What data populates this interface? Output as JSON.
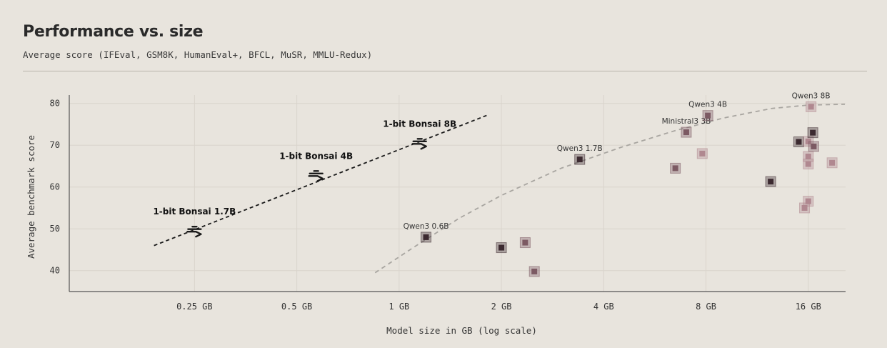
{
  "title": "Performance vs. size",
  "subtitle": "Average score (IFEval, GSM8K, HumanEval+, BFCL, MuSR, MMLU-Redux)",
  "chart_data": {
    "type": "scatter",
    "title": "Performance vs. size",
    "xlabel": "Model size in GB (log scale)",
    "ylabel": "Average benchmark score",
    "xscale": "log2",
    "xlim": [
      0.107,
      20.6
    ],
    "ylim": [
      35,
      82
    ],
    "xticks": [
      0.25,
      0.5,
      1,
      2,
      4,
      8,
      16
    ],
    "xtick_labels": [
      "0.25 GB",
      "0.5 GB",
      "1 GB",
      "2 GB",
      "4 GB",
      "8 GB",
      "16 GB"
    ],
    "yticks": [
      40,
      50,
      60,
      70,
      80
    ],
    "ytick_labels": [
      "40",
      "50",
      "60",
      "70",
      "80"
    ],
    "grid": true,
    "colors": {
      "background": "#e8e4dd",
      "grid": "#d9d4cc",
      "axis": "#555555",
      "bonsai_trend": "#1a1a1a",
      "baseline_trend": "#a8a5a0",
      "dark_marker": "#3c2a30",
      "mid_marker": "#7c5a63",
      "light_marker": "#b08890"
    },
    "bonsai": {
      "icon": "bonsai-chevron-icon",
      "points": [
        {
          "label": "1-bit Bonsai 1.7B",
          "x": 0.25,
          "y": 49.5
        },
        {
          "label": "1-bit Bonsai 4B",
          "x": 0.57,
          "y": 62.8
        },
        {
          "label": "1-bit Bonsai 8B",
          "x": 1.15,
          "y": 70.5
        }
      ],
      "trend": [
        {
          "x": 0.19,
          "y": 46.0
        },
        {
          "x": 1.82,
          "y": 77.2
        }
      ]
    },
    "baseline_trend": [
      {
        "x": 0.85,
        "y": 39.5
      },
      {
        "x": 1.1,
        "y": 45.5
      },
      {
        "x": 1.5,
        "y": 52.5
      },
      {
        "x": 2.0,
        "y": 58.0
      },
      {
        "x": 3.0,
        "y": 64.5
      },
      {
        "x": 4.5,
        "y": 69.5
      },
      {
        "x": 6.5,
        "y": 73.5
      },
      {
        "x": 9.0,
        "y": 76.5
      },
      {
        "x": 12.5,
        "y": 78.8
      },
      {
        "x": 16.0,
        "y": 79.6
      },
      {
        "x": 20.5,
        "y": 79.8
      }
    ],
    "points": [
      {
        "label": "Qwen3 0.6B",
        "x": 1.2,
        "y": 48.0,
        "shade": "dark"
      },
      {
        "label": "",
        "x": 2.0,
        "y": 45.5,
        "shade": "dark"
      },
      {
        "label": "",
        "x": 2.35,
        "y": 46.7,
        "shade": "mid"
      },
      {
        "label": "",
        "x": 2.5,
        "y": 39.8,
        "shade": "mid"
      },
      {
        "label": "Qwen3 1.7B",
        "x": 3.4,
        "y": 66.6,
        "shade": "dark"
      },
      {
        "label": "",
        "x": 6.5,
        "y": 64.5,
        "shade": "mid"
      },
      {
        "label": "Ministral3 3B",
        "x": 7.0,
        "y": 73.1,
        "shade": "mid"
      },
      {
        "label": "",
        "x": 7.8,
        "y": 68.0,
        "shade": "light"
      },
      {
        "label": "Qwen3 4B",
        "x": 8.1,
        "y": 77.1,
        "shade": "mid"
      },
      {
        "label": "",
        "x": 12.4,
        "y": 61.3,
        "shade": "dark"
      },
      {
        "label": "",
        "x": 15.0,
        "y": 70.8,
        "shade": "dark"
      },
      {
        "label": "",
        "x": 15.6,
        "y": 55.0,
        "shade": "light"
      },
      {
        "label": "",
        "x": 16.0,
        "y": 70.9,
        "shade": "light"
      },
      {
        "label": "",
        "x": 16.0,
        "y": 67.3,
        "shade": "light"
      },
      {
        "label": "",
        "x": 16.0,
        "y": 65.5,
        "shade": "light"
      },
      {
        "label": "",
        "x": 16.0,
        "y": 56.6,
        "shade": "light"
      },
      {
        "label": "",
        "x": 16.5,
        "y": 73.0,
        "shade": "dark"
      },
      {
        "label": "",
        "x": 16.6,
        "y": 69.7,
        "shade": "mid"
      },
      {
        "label": "Qwen3 8B",
        "x": 16.3,
        "y": 79.2,
        "shade": "light"
      },
      {
        "label": "",
        "x": 18.8,
        "y": 65.8,
        "shade": "light"
      }
    ]
  }
}
